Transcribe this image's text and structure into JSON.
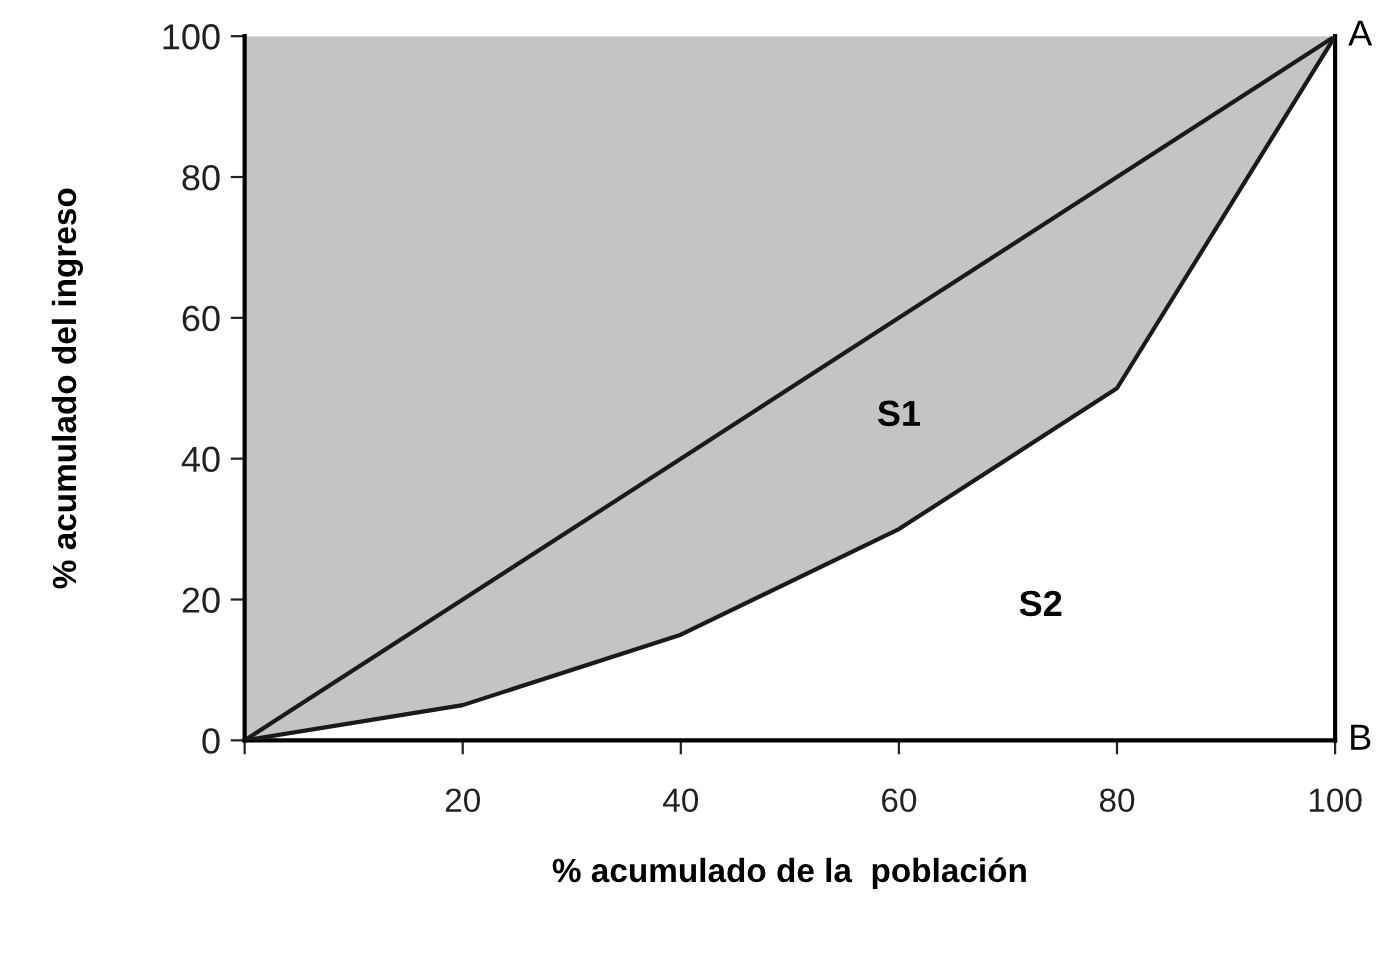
{
  "chart_data": {
    "type": "line",
    "xlabel": "% acumulado de la  población",
    "ylabel": "% acumulado del ingreso",
    "x": [
      0,
      20,
      40,
      60,
      80,
      100
    ],
    "series": [
      {
        "color": "#1a1a1a",
        "values": [
          0,
          20,
          40,
          60,
          80,
          100
        ]
      },
      {
        "color": "#1a1a1a",
        "values": [
          0,
          5,
          15,
          30,
          50,
          100
        ],
        "lower": [
          0,
          5,
          15,
          30,
          50,
          100
        ],
        "upper": [
          100,
          100,
          100,
          100,
          100,
          100
        ]
      }
    ],
    "xlim": [
      0,
      100
    ],
    "ylim": [
      0,
      100
    ],
    "xticks": [
      {
        "value": 0,
        "label": null
      },
      20,
      40,
      60,
      80,
      100
    ],
    "yticks": [
      0,
      20,
      40,
      60,
      80,
      100
    ],
    "grid": false,
    "legend": false,
    "marker": "none",
    "line_style": "solid",
    "annotations": [
      "S1",
      "S2",
      "A",
      "B"
    ]
  }
}
